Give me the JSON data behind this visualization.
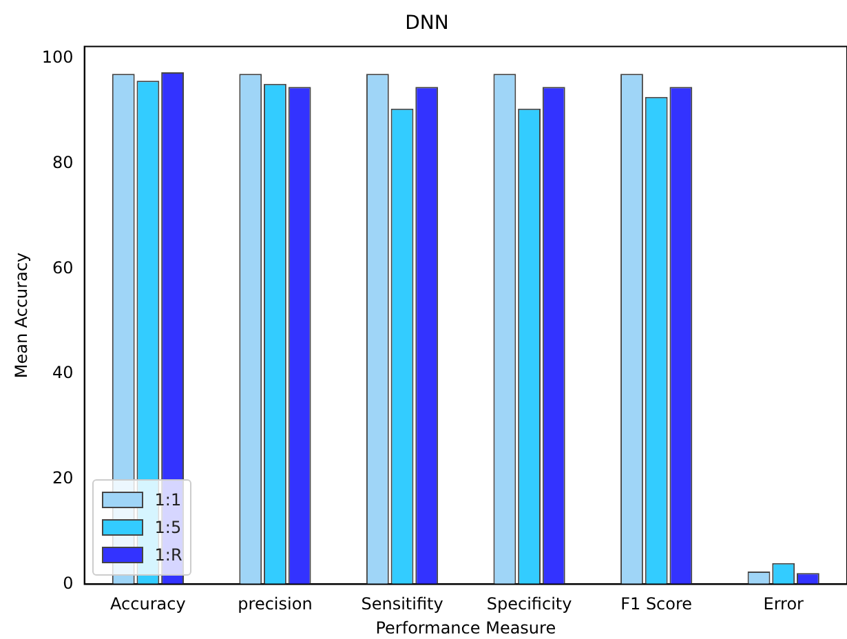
{
  "chart_data": {
    "type": "bar",
    "title": "DNN",
    "xlabel": "Performance Measure",
    "ylabel": "Mean Accuracy",
    "categories": [
      "Accuracy",
      "precision",
      "Sensitifity",
      "Specificity",
      "F1 Score",
      "Error"
    ],
    "series": [
      {
        "name": "1:1",
        "color": "#9fd5f7",
        "values": [
          97.1,
          97.1,
          97.1,
          97.1,
          97.1,
          2.4
        ]
      },
      {
        "name": "1:5",
        "color": "#33ccff",
        "values": [
          95.8,
          95.2,
          90.5,
          90.5,
          92.7,
          4.0
        ]
      },
      {
        "name": "1:R",
        "color": "#3333ff",
        "values": [
          97.4,
          94.6,
          94.6,
          94.6,
          94.6,
          2.1
        ]
      }
    ],
    "ylim": [
      0,
      102.3
    ],
    "yticks": [
      0,
      20,
      40,
      60,
      80,
      100
    ],
    "grid": false,
    "legend": "bottom left"
  }
}
